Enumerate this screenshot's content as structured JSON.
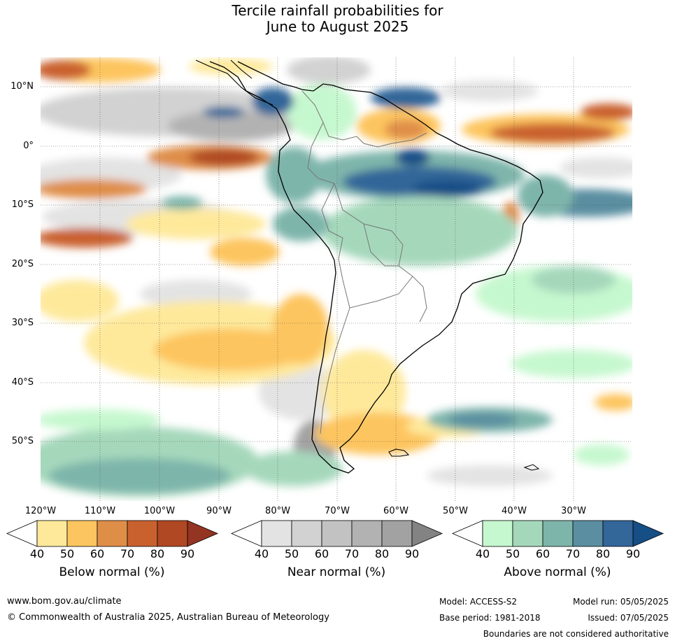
{
  "title": {
    "line1": "Tercile rainfall probabilities for",
    "line2": "June to August 2025"
  },
  "map": {
    "lat_labels": [
      "10°N",
      "0°",
      "10°S",
      "20°S",
      "30°S",
      "40°S",
      "50°S"
    ],
    "lon_labels": [
      "120°W",
      "110°W",
      "100°W",
      "90°W",
      "80°W",
      "70°W",
      "60°W",
      "50°W",
      "40°W",
      "30°W"
    ]
  },
  "colorbars": {
    "below": {
      "title": "Below normal (%)",
      "ticks": [
        "40",
        "50",
        "60",
        "70",
        "80",
        "90"
      ],
      "colors": [
        "#ffffff",
        "#fee99b",
        "#fdc55f",
        "#df8e48",
        "#c9612f",
        "#b04824",
        "#943422"
      ]
    },
    "near": {
      "title": "Near normal (%)",
      "ticks": [
        "40",
        "50",
        "60",
        "70",
        "80",
        "90"
      ],
      "colors": [
        "#ffffff",
        "#e3e3e3",
        "#d2d2d2",
        "#c2c2c2",
        "#b2b2b2",
        "#a2a2a2",
        "#838383"
      ]
    },
    "above": {
      "title": "Above normal (%)",
      "ticks": [
        "40",
        "50",
        "60",
        "70",
        "80",
        "90"
      ],
      "colors": [
        "#ffffff",
        "#c6f8cf",
        "#a5d8bb",
        "#7eb5ab",
        "#5a8ea0",
        "#336699",
        "#164e86"
      ]
    }
  },
  "footer": {
    "url": "www.bom.gov.au/climate",
    "copyright": "© Commonwealth of Australia 2025, Australian Bureau of Meteorology",
    "model": "Model: ACCESS-S2",
    "base_period": "Base period: 1981-2018",
    "model_run": "Model run: 05/05/2025",
    "issued": "Issued: 07/05/2025",
    "disclaimer": "Boundaries are not considered authoritative"
  }
}
